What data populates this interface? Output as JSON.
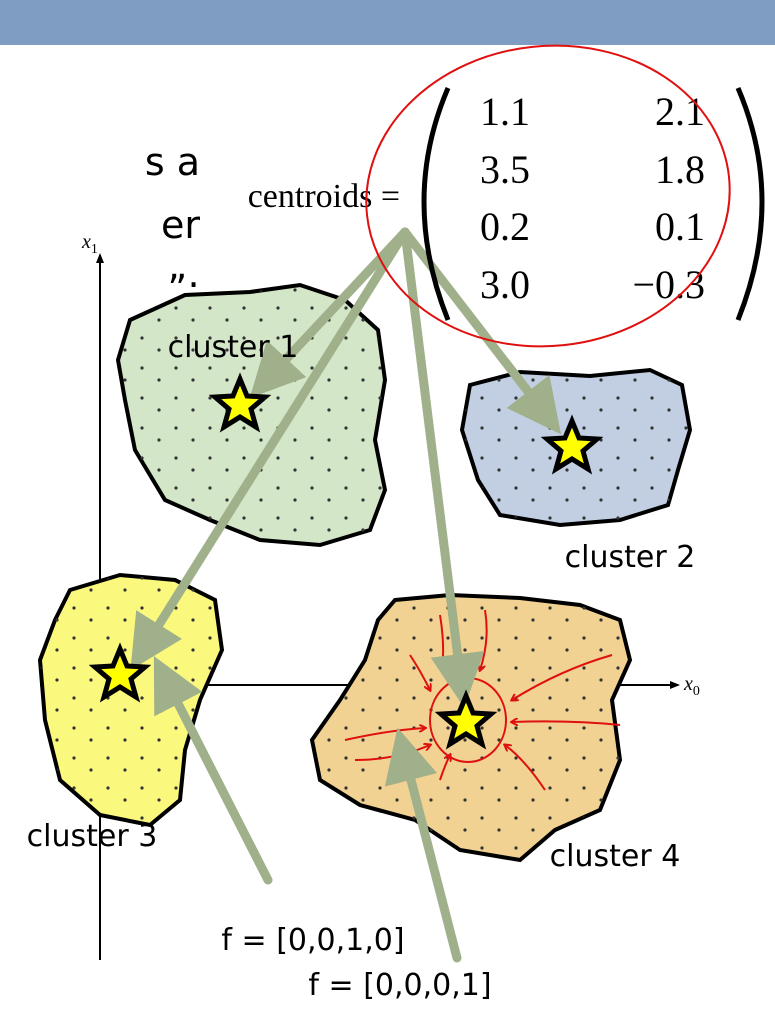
{
  "slide_text": [
    "s a",
    "er",
    "”:"
  ],
  "centroids": {
    "label": "centroids =",
    "rows": [
      [
        "1.1",
        "2.1"
      ],
      [
        "3.5",
        "1.8"
      ],
      [
        "0.2",
        "0.1"
      ],
      [
        "3.0",
        "−0.3"
      ]
    ]
  },
  "axes": {
    "vertical": {
      "symbol": "x",
      "subscript": "1"
    },
    "horizontal": {
      "symbol": "x",
      "subscript": "0"
    }
  },
  "clusters": [
    "cluster 1",
    "cluster 2",
    "cluster 3",
    "cluster 4"
  ],
  "features": [
    "f = [0,0,1,0]",
    "f = [0,0,0,1]"
  ]
}
